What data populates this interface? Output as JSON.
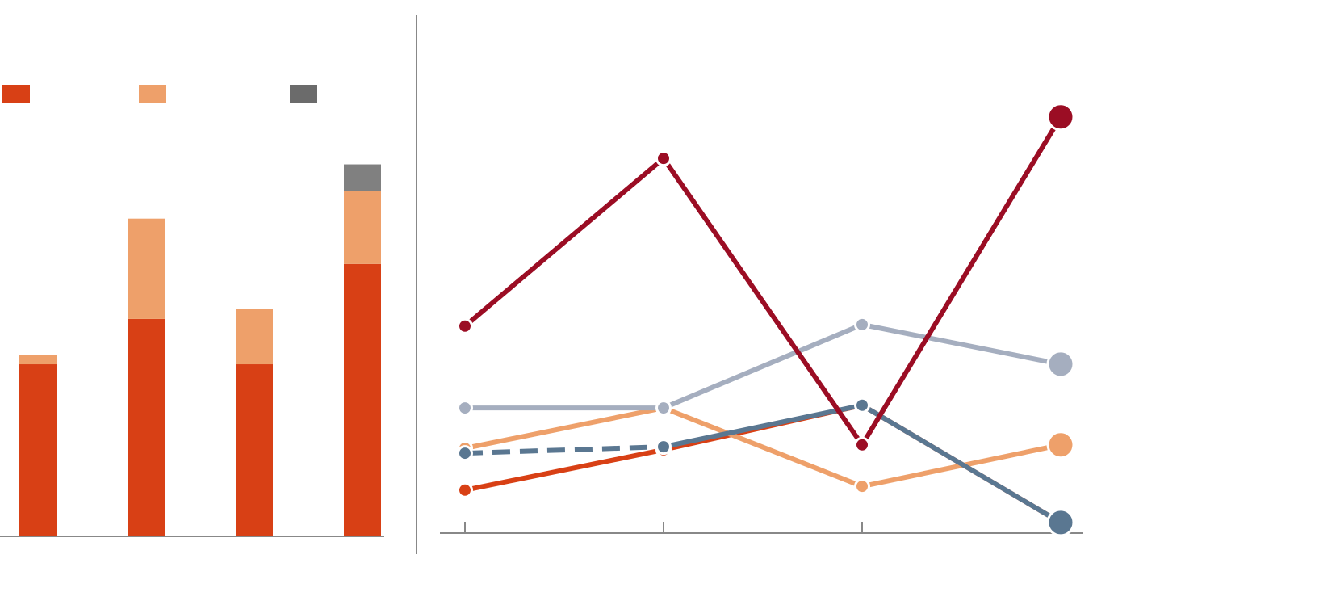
{
  "chart_data": [
    {
      "type": "stacked_bar",
      "categories": [
        null,
        null,
        null,
        null
      ],
      "ylim": [
        0,
        100
      ],
      "series": [
        {
          "color": "#d84015",
          "values": [
            46.3,
            58.5,
            46.3,
            73.3
          ]
        },
        {
          "color": "#eea06a",
          "values": [
            2.4,
            27,
            14.8,
            19.6
          ]
        },
        {
          "color": "#6b6b6b",
          "values": [
            0,
            0,
            0,
            7.2
          ]
        }
      ]
    },
    {
      "type": "line",
      "categories": [
        null,
        null,
        null,
        null
      ],
      "ylim": [
        0,
        120
      ],
      "series": [
        {
          "color": "#d84015",
          "values": [
            11.4,
            22.1,
            33.9,
            2.8
          ]
        },
        {
          "color": "#eea06a",
          "values": [
            22.5,
            33.2,
            12.4,
            23.4
          ]
        },
        {
          "color": "#a5aebf",
          "values": [
            33.2,
            33.2,
            55.3,
            44.8
          ]
        },
        {
          "color": "#5a7791",
          "values": [
            21.2,
            22.9,
            33.9,
            2.8
          ],
          "dash_first_segment": true
        },
        {
          "color": "#9b0d24",
          "values": [
            54.9,
            99.4,
            23.4,
            110.4
          ]
        }
      ]
    }
  ]
}
